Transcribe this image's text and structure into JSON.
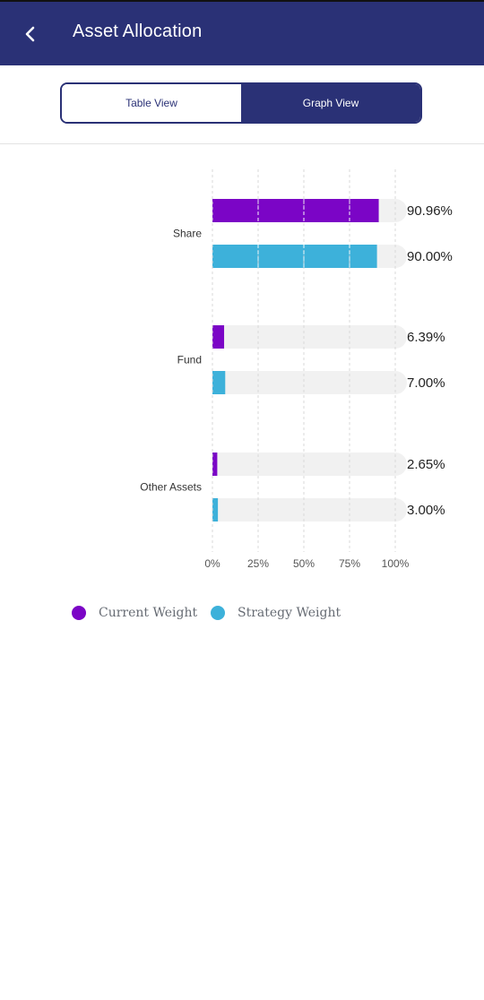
{
  "header": {
    "title": "Asset Allocation",
    "back_icon": "chevron-left-icon"
  },
  "view_toggle": {
    "table_label": "Table View",
    "graph_label": "Graph View",
    "selected": "Graph View"
  },
  "colors": {
    "header_bg": "#2a3176",
    "current": "#7b05c6",
    "strategy": "#3db1da",
    "track": "#f1f1f1"
  },
  "chart_data": {
    "type": "bar",
    "orientation": "horizontal",
    "categories": [
      "Share",
      "Fund",
      "Other Assets"
    ],
    "series": [
      {
        "name": "Current Weight",
        "values": [
          90.96,
          6.39,
          2.65
        ],
        "labels": [
          "90.96%",
          "6.39%",
          "2.65%"
        ]
      },
      {
        "name": "Strategy Weight",
        "values": [
          90.0,
          7.0,
          3.0
        ],
        "labels": [
          "90.00%",
          "7.00%",
          "3.00%"
        ]
      }
    ],
    "x_ticks": [
      "0%",
      "25%",
      "50%",
      "75%",
      "100%"
    ],
    "xlim": [
      0,
      100
    ],
    "grid": true,
    "legend_position": "bottom"
  },
  "legend": [
    {
      "label": "Current Weight",
      "color": "#7b05c6"
    },
    {
      "label": "Strategy Weight",
      "color": "#3db1da"
    }
  ]
}
